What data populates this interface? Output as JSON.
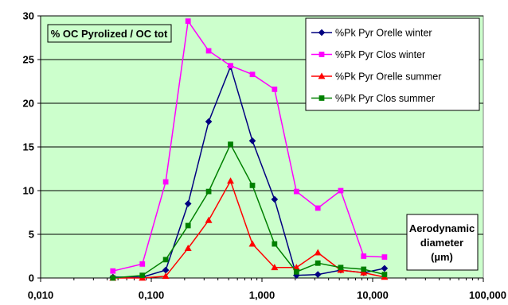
{
  "chart_data": {
    "type": "line",
    "x_scale": "log",
    "xlim": [
      0.01,
      100
    ],
    "ylim": [
      0,
      30
    ],
    "grid": true,
    "legend_position": "top-right",
    "plot_background": "#ccffcc",
    "x_ticks": [
      {
        "value": 0.01,
        "label": "0,010"
      },
      {
        "value": 0.1,
        "label": "0,100"
      },
      {
        "value": 1,
        "label": "1,000"
      },
      {
        "value": 10,
        "label": "10,000"
      },
      {
        "value": 100,
        "label": "100,000"
      }
    ],
    "y_ticks": [
      {
        "value": 0,
        "label": "0"
      },
      {
        "value": 5,
        "label": "5"
      },
      {
        "value": 10,
        "label": "10"
      },
      {
        "value": 15,
        "label": "15"
      },
      {
        "value": 20,
        "label": "20"
      },
      {
        "value": 25,
        "label": "25"
      },
      {
        "value": 30,
        "label": "30"
      }
    ],
    "ylabel": "% OC Pyrolized / OC tot",
    "xlabel_lines": [
      "Aerodynamic",
      "diameter",
      "(µm)"
    ],
    "x": [
      0.045,
      0.083,
      0.135,
      0.215,
      0.33,
      0.52,
      0.82,
      1.3,
      2.05,
      3.2,
      5.15,
      8.3,
      12.8
    ],
    "series": [
      {
        "name": "%Pk Pyr Orelle winter",
        "color": "#000080",
        "marker": "diamond",
        "values": [
          0.1,
          0.1,
          0.9,
          8.5,
          17.9,
          24.2,
          15.7,
          9.0,
          0.3,
          0.4,
          0.9,
          0.6,
          1.1
        ]
      },
      {
        "name": "%Pk Pyr Clos winter",
        "color": "#ff00ff",
        "marker": "square",
        "values": [
          0.8,
          1.6,
          11.0,
          29.4,
          26.0,
          24.3,
          23.3,
          21.6,
          9.9,
          8.0,
          10.0,
          2.5,
          2.4
        ]
      },
      {
        "name": "%Pk Pyr Orelle summer",
        "color": "#ff0000",
        "marker": "triangle",
        "values": [
          0.0,
          0.0,
          0.2,
          3.4,
          6.6,
          11.1,
          3.9,
          1.2,
          1.2,
          2.9,
          0.9,
          0.6,
          0.1
        ]
      },
      {
        "name": "%Pk Pyr Clos summer",
        "color": "#008000",
        "marker": "square",
        "values": [
          0.0,
          0.3,
          2.1,
          6.0,
          9.9,
          15.3,
          10.6,
          3.9,
          0.7,
          1.7,
          1.2,
          1.0,
          0.4
        ]
      }
    ]
  }
}
